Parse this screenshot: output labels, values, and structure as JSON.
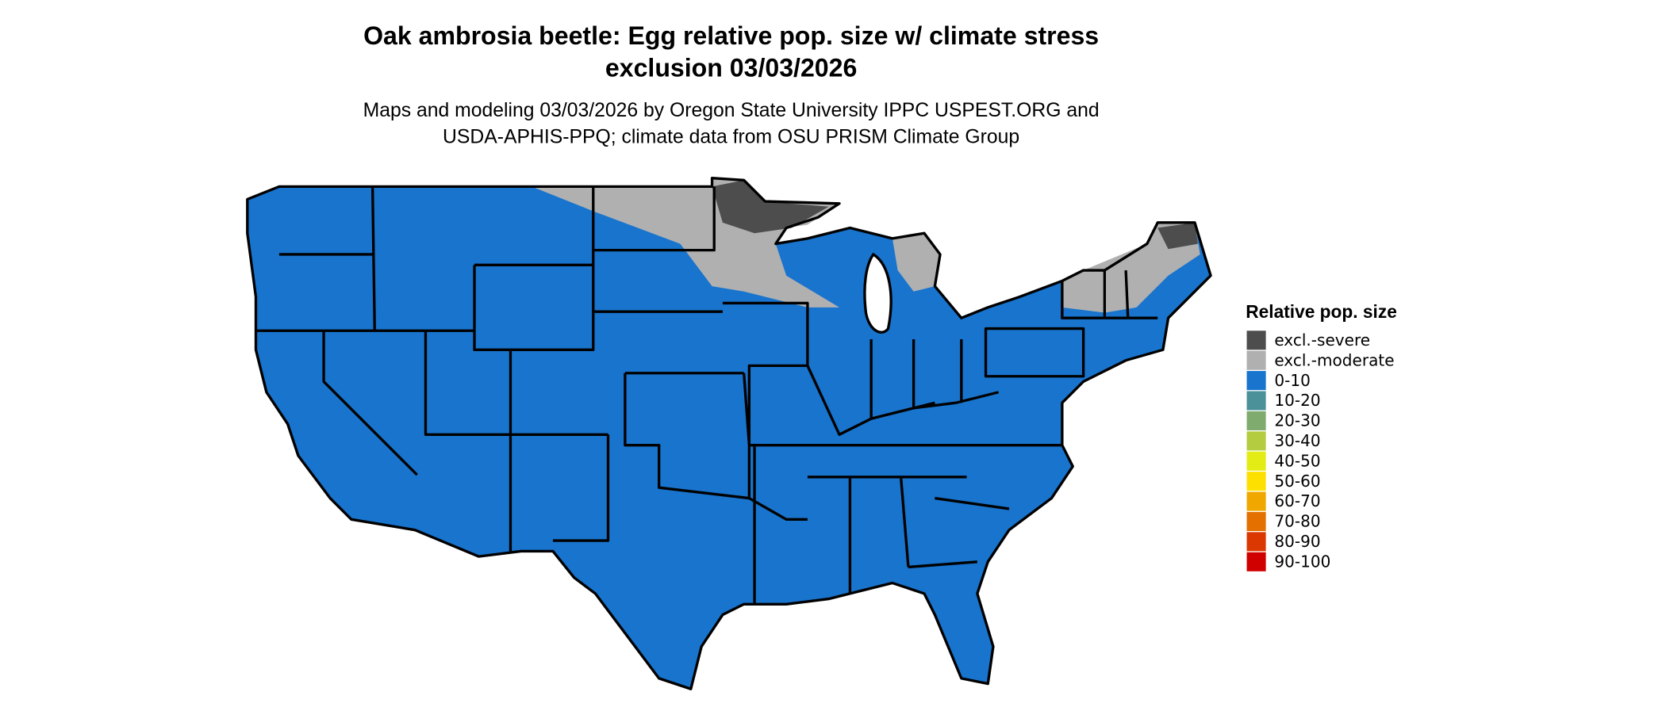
{
  "header": {
    "title": [
      "Oak ambrosia beetle: Egg relative pop. size w/ climate stress",
      "exclusion 03/03/2026"
    ],
    "subtitle": [
      "Maps and modeling 03/03/2026 by Oregon State University IPPC USPEST.ORG and",
      "USDA-APHIS-PPQ; climate data from OSU PRISM Climate Group"
    ]
  },
  "legend": {
    "title": "Relative pop. size",
    "items": [
      {
        "label": "excl.-severe",
        "color": "#4d4d4d"
      },
      {
        "label": "excl.-moderate",
        "color": "#b0b0b0"
      },
      {
        "label": "0-10",
        "color": "#1874cd"
      },
      {
        "label": "10-20",
        "color": "#4a9199"
      },
      {
        "label": "20-30",
        "color": "#7fac6e"
      },
      {
        "label": "30-40",
        "color": "#b3cc40"
      },
      {
        "label": "40-50",
        "color": "#e3ec14"
      },
      {
        "label": "50-60",
        "color": "#fde000"
      },
      {
        "label": "60-70",
        "color": "#f0a800"
      },
      {
        "label": "70-80",
        "color": "#e47000"
      },
      {
        "label": "80-90",
        "color": "#da3800"
      },
      {
        "label": "90-100",
        "color": "#d00000"
      }
    ]
  }
}
